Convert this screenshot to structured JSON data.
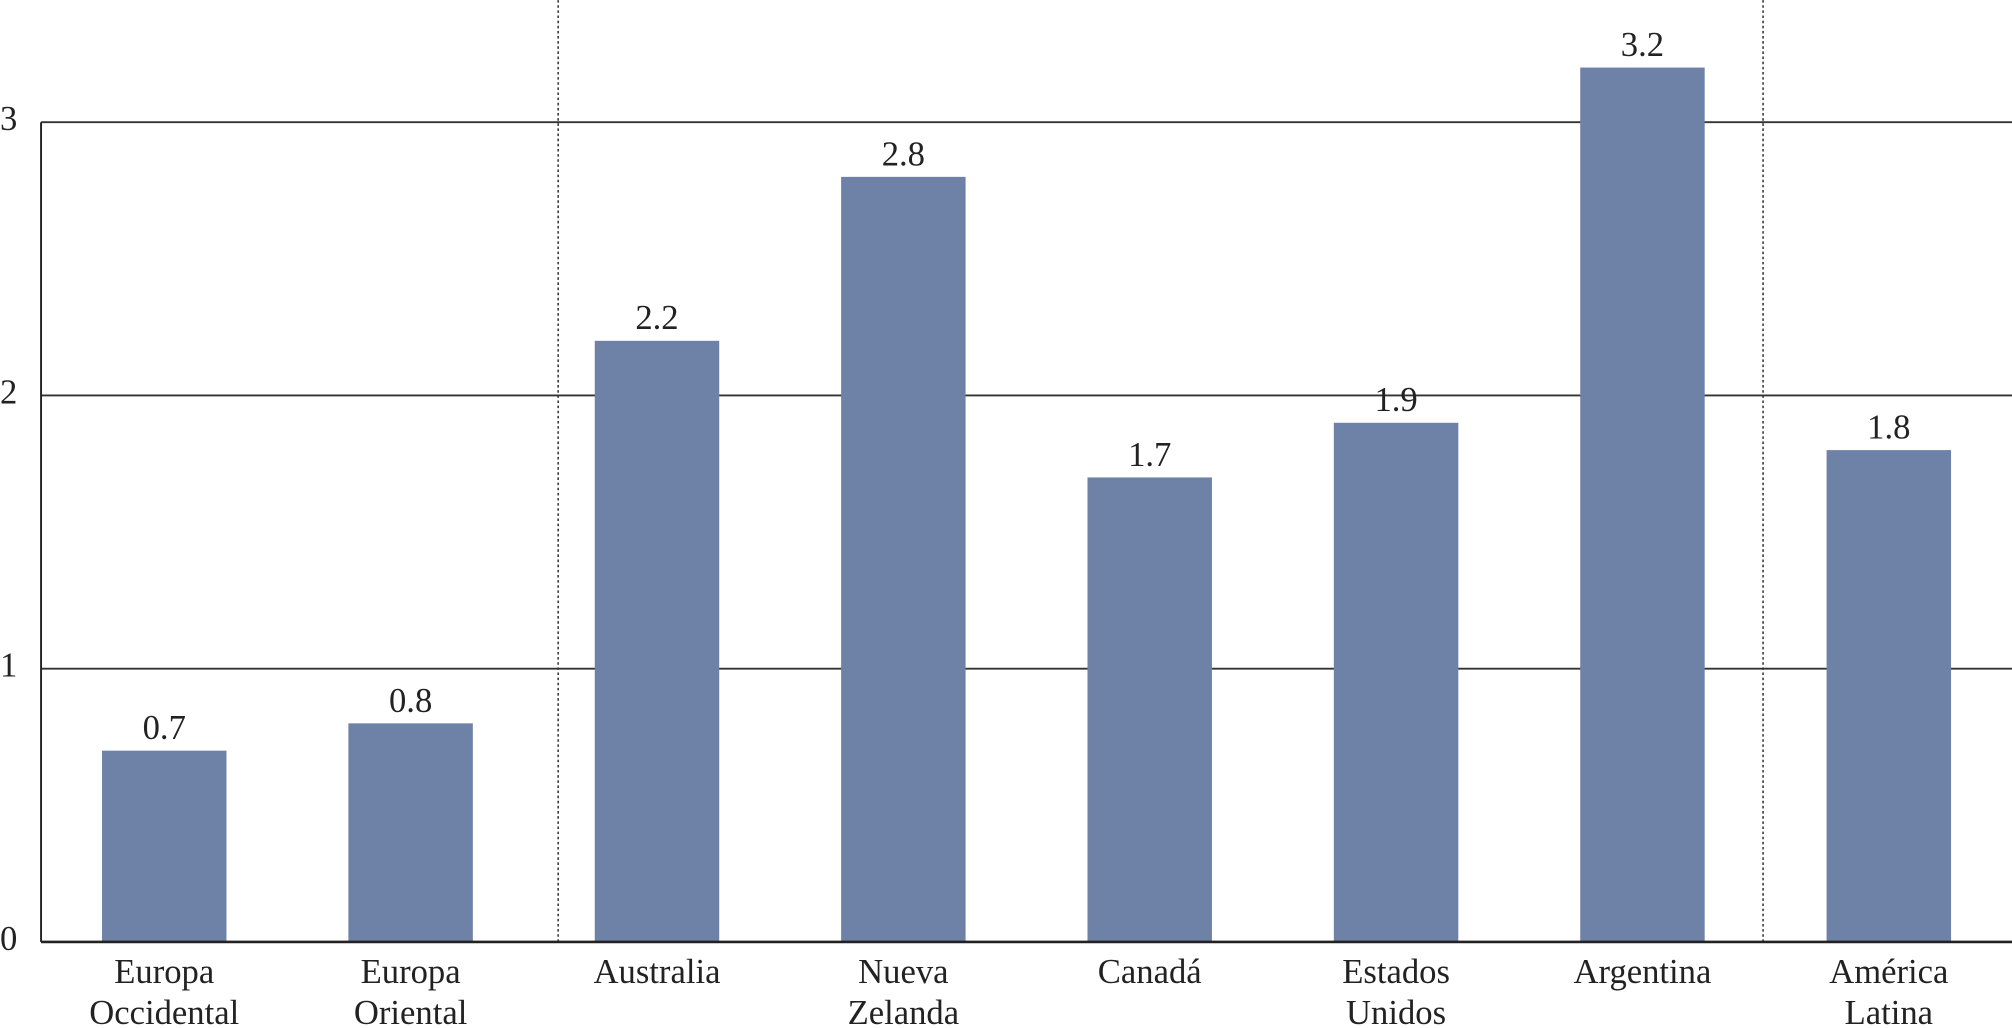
{
  "chart_data": {
    "type": "bar",
    "categories": [
      "Europa Occidental",
      "Europa Oriental",
      "Australia",
      "Nueva Zelanda",
      "Canadá",
      "Estados Unidos",
      "Argentina",
      "América Latina"
    ],
    "values": [
      0.7,
      0.8,
      2.2,
      2.8,
      1.7,
      1.9,
      3.2,
      1.8
    ],
    "color": "#6e82a8",
    "ylim": [
      0,
      3.4
    ],
    "yticks": [
      0,
      1,
      2,
      3
    ],
    "grid": true
  }
}
